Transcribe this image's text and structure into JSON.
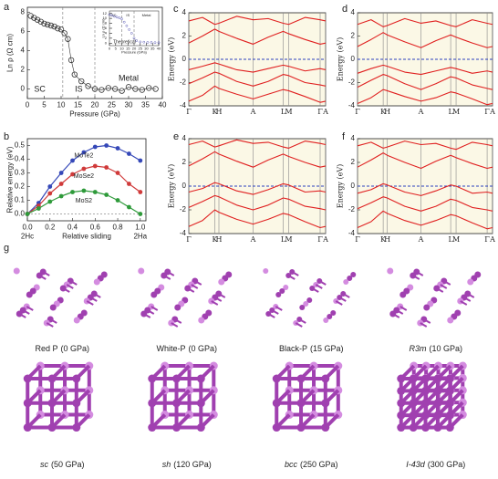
{
  "chart_data": [
    {
      "panel_label": "a",
      "type": "scatter",
      "x_label": "Pressure (GPa)",
      "y_label": "Ln ρ (Ω cm)",
      "xlim": [
        0,
        40
      ],
      "ylim": [
        -1,
        8.5
      ],
      "xticks": [
        0,
        5,
        10,
        15,
        20,
        25,
        30,
        35,
        40
      ],
      "yticks": [
        0,
        2,
        4,
        6,
        8
      ],
      "x": [
        1,
        2,
        3,
        4,
        5,
        6,
        7,
        8,
        9,
        10,
        11,
        12,
        13,
        14,
        16,
        18,
        20,
        22,
        24,
        26,
        28,
        30,
        32,
        34,
        36,
        38
      ],
      "values": [
        7.6,
        7.4,
        7.2,
        7.0,
        6.8,
        6.7,
        6.6,
        6.5,
        6.3,
        6.2,
        5.8,
        5.2,
        3.0,
        1.5,
        0.8,
        0.3,
        0.0,
        -0.1,
        0.1,
        0.0,
        -0.2,
        0.2,
        0.0,
        -0.1,
        0.1,
        0.0
      ],
      "color": "#333333",
      "region_labels": [
        "SC",
        "IS",
        "Metal"
      ],
      "boundaries": [
        10.5,
        20
      ],
      "inset": {
        "type": "scatter",
        "x_label": "Pressure (GPa)",
        "y_label": "Ln ρ (Ω cm)",
        "legend": "Theoretical",
        "color": "#5a5ab4",
        "region_labels": [
          "SC",
          "IS",
          "Metal"
        ],
        "boundaries": [
          10,
          20
        ],
        "xlim": [
          0,
          40
        ],
        "ylim": [
          -1,
          13
        ],
        "xticks": [
          0,
          5,
          10,
          15,
          20,
          25,
          30,
          35,
          40
        ],
        "yticks": [
          0,
          2,
          4,
          6,
          8,
          10,
          12
        ],
        "x": [
          0,
          2,
          4,
          6,
          8,
          10,
          12,
          14,
          16,
          18,
          20,
          22,
          25,
          28,
          31,
          34,
          37,
          40
        ],
        "values": [
          11.5,
          11.2,
          10.8,
          10.5,
          10.2,
          9.8,
          8.5,
          7,
          5.5,
          4,
          2,
          1,
          0.5,
          0.4,
          0.3,
          0.3,
          0.2,
          0.2
        ]
      }
    },
    {
      "panel_label": "b",
      "type": "line",
      "x_label": "Relative sliding",
      "y_label": "Relative energy (eV)",
      "x_end_labels": [
        "2Hc",
        "2Ha"
      ],
      "xlim": [
        0,
        1.05
      ],
      "ylim": [
        -0.05,
        0.55
      ],
      "xticks": [
        {
          "value": 0,
          "label": "0.0"
        },
        {
          "value": 0.2,
          "label": "0.2"
        },
        {
          "value": 0.4,
          "label": "0.4"
        },
        {
          "value": 0.6,
          "label": "0.6"
        },
        {
          "value": 0.8,
          "label": "0.8"
        },
        {
          "value": 1,
          "label": "1.0"
        }
      ],
      "yticks": [
        {
          "value": 0,
          "label": "0.0"
        },
        {
          "value": 0.1,
          "label": "0.1"
        },
        {
          "value": 0.2,
          "label": "0.2"
        },
        {
          "value": 0.3,
          "label": "0.3"
        },
        {
          "value": 0.4,
          "label": "0.4"
        },
        {
          "value": 0.5,
          "label": "0.5"
        }
      ],
      "reference_line": 0,
      "x": [
        0,
        0.1,
        0.2,
        0.3,
        0.4,
        0.5,
        0.6,
        0.7,
        0.8,
        0.9,
        1.0
      ],
      "series": [
        {
          "name": "MoTe2",
          "color": "#3548b8",
          "values": [
            0,
            0.08,
            0.2,
            0.3,
            0.39,
            0.45,
            0.49,
            0.5,
            0.48,
            0.44,
            0.39
          ]
        },
        {
          "name": "MoSe2",
          "color": "#d03a3a",
          "values": [
            0,
            0.06,
            0.15,
            0.22,
            0.29,
            0.33,
            0.35,
            0.34,
            0.3,
            0.22,
            0.16
          ]
        },
        {
          "name": "MoS2",
          "color": "#2e9a3a",
          "values": [
            0,
            0.04,
            0.09,
            0.13,
            0.16,
            0.17,
            0.16,
            0.14,
            0.1,
            0.05,
            0.0
          ]
        }
      ]
    },
    {
      "panel_label": "c",
      "type": "line",
      "y_label": "Energy (eV)",
      "background": "#fbf8e6",
      "fermi_level": 0,
      "xlim": [
        0,
        1
      ],
      "ylim": [
        -4,
        4
      ],
      "yticks": [
        -4,
        -2,
        0,
        2,
        4
      ],
      "xticks": [
        {
          "value": 0,
          "label": "Γ"
        },
        {
          "value": 0.19,
          "label": "K"
        },
        {
          "value": 0.22,
          "label": "H"
        },
        {
          "value": 0.47,
          "label": "A"
        },
        {
          "value": 0.69,
          "label": "L"
        },
        {
          "value": 0.73,
          "label": "M"
        },
        {
          "value": 0.96,
          "label": "Γ"
        },
        {
          "value": 1,
          "label": "A"
        }
      ],
      "x": [
        0,
        0.1,
        0.19,
        0.22,
        0.35,
        0.47,
        0.58,
        0.69,
        0.73,
        0.85,
        0.96,
        1
      ],
      "series": [
        {
          "color": "#e02020",
          "values": [
            -3.6,
            -3.1,
            -2.3,
            -2.5,
            -3.0,
            -3.4,
            -3.0,
            -2.6,
            -2.7,
            -3.2,
            -3.7,
            -3.6
          ]
        },
        {
          "color": "#e02020",
          "values": [
            -2.1,
            -1.6,
            -1.1,
            -1.2,
            -1.9,
            -2.3,
            -1.9,
            -1.3,
            -1.4,
            -2.0,
            -2.2,
            -2.3
          ]
        },
        {
          "color": "#e02020",
          "values": [
            -0.9,
            -0.6,
            -0.3,
            -0.4,
            -0.9,
            -1.1,
            -0.8,
            -0.5,
            -0.6,
            -1.0,
            -0.8,
            -0.9
          ]
        },
        {
          "color": "#e02020",
          "values": [
            1.4,
            2.0,
            2.6,
            2.4,
            1.8,
            1.3,
            1.9,
            2.4,
            2.2,
            1.7,
            1.3,
            1.4
          ]
        },
        {
          "color": "#e02020",
          "values": [
            3.3,
            3.6,
            3.0,
            3.1,
            3.7,
            3.4,
            3.5,
            3.1,
            3.0,
            3.6,
            3.4,
            3.3
          ]
        }
      ]
    },
    {
      "panel_label": "d",
      "type": "line",
      "y_label": "Energy (eV)",
      "background": "#fbf8e6",
      "fermi_level": 0,
      "xlim": [
        0,
        1
      ],
      "ylim": [
        -4,
        4
      ],
      "yticks": [
        -4,
        -2,
        0,
        2,
        4
      ],
      "xticks": [
        {
          "value": 0,
          "label": "Γ"
        },
        {
          "value": 0.19,
          "label": "K"
        },
        {
          "value": 0.22,
          "label": "H"
        },
        {
          "value": 0.47,
          "label": "A"
        },
        {
          "value": 0.69,
          "label": "L"
        },
        {
          "value": 0.73,
          "label": "M"
        },
        {
          "value": 0.96,
          "label": "Γ"
        },
        {
          "value": 1,
          "label": "A"
        }
      ],
      "x": [
        0,
        0.1,
        0.19,
        0.22,
        0.35,
        0.47,
        0.58,
        0.69,
        0.73,
        0.85,
        0.96,
        1
      ],
      "series": [
        {
          "color": "#e02020",
          "values": [
            -3.8,
            -3.3,
            -2.6,
            -2.7,
            -3.2,
            -3.6,
            -3.3,
            -2.8,
            -2.9,
            -3.4,
            -3.9,
            -3.8
          ]
        },
        {
          "color": "#e02020",
          "values": [
            -2.4,
            -1.8,
            -1.3,
            -1.4,
            -2.1,
            -2.6,
            -2.1,
            -1.5,
            -1.6,
            -2.2,
            -2.5,
            -2.6
          ]
        },
        {
          "color": "#e02020",
          "values": [
            -1.2,
            -0.8,
            -0.5,
            -0.6,
            -1.1,
            -1.3,
            -1.0,
            -0.7,
            -0.8,
            -1.2,
            -1.0,
            -1.1
          ]
        },
        {
          "color": "#e02020",
          "values": [
            1.1,
            1.7,
            2.3,
            2.1,
            1.5,
            1.0,
            1.6,
            2.1,
            1.9,
            1.4,
            1.0,
            1.1
          ]
        },
        {
          "color": "#e02020",
          "values": [
            3.0,
            3.4,
            2.8,
            2.9,
            3.5,
            3.1,
            3.3,
            2.9,
            2.8,
            3.4,
            3.1,
            3.0
          ]
        }
      ]
    },
    {
      "panel_label": "e",
      "type": "line",
      "y_label": "Energy (eV)",
      "background": "#fbf8e6",
      "fermi_level": 0,
      "xlim": [
        0,
        1
      ],
      "ylim": [
        -4,
        4
      ],
      "yticks": [
        -4,
        -2,
        0,
        2,
        4
      ],
      "xticks": [
        {
          "value": 0,
          "label": "Γ"
        },
        {
          "value": 0.19,
          "label": "K"
        },
        {
          "value": 0.22,
          "label": "H"
        },
        {
          "value": 0.47,
          "label": "A"
        },
        {
          "value": 0.69,
          "label": "L"
        },
        {
          "value": 0.73,
          "label": "M"
        },
        {
          "value": 0.96,
          "label": "Γ"
        },
        {
          "value": 1,
          "label": "A"
        }
      ],
      "x": [
        0,
        0.1,
        0.19,
        0.22,
        0.35,
        0.47,
        0.58,
        0.69,
        0.73,
        0.85,
        0.96,
        1
      ],
      "series": [
        {
          "color": "#e02020",
          "values": [
            -3.4,
            -2.9,
            -2.0,
            -2.2,
            -2.8,
            -3.2,
            -2.8,
            -2.3,
            -2.4,
            -3.0,
            -3.5,
            -3.4
          ]
        },
        {
          "color": "#e02020",
          "values": [
            -1.8,
            -1.3,
            -0.8,
            -0.9,
            -1.6,
            -2.0,
            -1.6,
            -1.0,
            -1.1,
            -1.7,
            -1.9,
            -2.0
          ]
        },
        {
          "color": "#e02020",
          "values": [
            -0.5,
            -0.2,
            0.3,
            0.2,
            -0.4,
            -0.7,
            -0.3,
            0.2,
            0.1,
            -0.5,
            -0.4,
            -0.5
          ]
        },
        {
          "color": "#e02020",
          "values": [
            1.7,
            2.3,
            2.9,
            2.7,
            2.1,
            1.6,
            2.2,
            2.7,
            2.5,
            2.0,
            1.6,
            1.7
          ]
        },
        {
          "color": "#e02020",
          "values": [
            3.5,
            3.8,
            3.3,
            3.4,
            3.9,
            3.6,
            3.7,
            3.3,
            3.2,
            3.8,
            3.6,
            3.5
          ]
        }
      ]
    },
    {
      "panel_label": "f",
      "type": "line",
      "y_label": "Energy (eV)",
      "background": "#fbf8e6",
      "fermi_level": 0,
      "xlim": [
        0,
        1
      ],
      "ylim": [
        -4,
        4
      ],
      "yticks": [
        -4,
        -2,
        0,
        2,
        4
      ],
      "xticks": [
        {
          "value": 0,
          "label": "Γ"
        },
        {
          "value": 0.19,
          "label": "K"
        },
        {
          "value": 0.22,
          "label": "H"
        },
        {
          "value": 0.47,
          "label": "A"
        },
        {
          "value": 0.69,
          "label": "L"
        },
        {
          "value": 0.73,
          "label": "M"
        },
        {
          "value": 0.96,
          "label": "Γ"
        },
        {
          "value": 1,
          "label": "A"
        }
      ],
      "x": [
        0,
        0.1,
        0.19,
        0.22,
        0.35,
        0.47,
        0.58,
        0.69,
        0.73,
        0.85,
        0.96,
        1
      ],
      "series": [
        {
          "color": "#e02020",
          "values": [
            -3.5,
            -3.0,
            -2.1,
            -2.3,
            -2.9,
            -3.3,
            -2.9,
            -2.4,
            -2.5,
            -3.1,
            -3.6,
            -3.5
          ]
        },
        {
          "color": "#e02020",
          "values": [
            -1.9,
            -1.4,
            -0.9,
            -1.0,
            -1.7,
            -2.1,
            -1.7,
            -1.1,
            -1.2,
            -1.8,
            -2.0,
            -2.1
          ]
        },
        {
          "color": "#e02020",
          "values": [
            -0.6,
            -0.3,
            0.2,
            0.1,
            -0.5,
            -0.8,
            -0.4,
            0.1,
            0.0,
            -0.6,
            -0.5,
            -0.6
          ]
        },
        {
          "color": "#e02020",
          "values": [
            1.6,
            2.2,
            2.8,
            2.6,
            2.0,
            1.5,
            2.1,
            2.6,
            2.4,
            1.9,
            1.5,
            1.6
          ]
        },
        {
          "color": "#e02020",
          "values": [
            3.4,
            3.7,
            3.2,
            3.3,
            3.8,
            3.5,
            3.6,
            3.2,
            3.1,
            3.7,
            3.5,
            3.4
          ]
        }
      ]
    }
  ],
  "structures": {
    "panel_label": "g",
    "items": [
      {
        "name": "Red P",
        "pressure": "(0 GPa)",
        "italic": false
      },
      {
        "name": "White-P",
        "pressure": "(0 GPa)",
        "italic": false
      },
      {
        "name": "Black-P",
        "pressure": "(15 GPa)",
        "italic": false
      },
      {
        "name": "R3m",
        "pressure": "(10 GPa)",
        "italic": true
      },
      {
        "name": "sc",
        "pressure": "(50 GPa)",
        "italic": true
      },
      {
        "name": "sh",
        "pressure": "(120 GPa)",
        "italic": true
      },
      {
        "name": "bcc",
        "pressure": "(250 GPa)",
        "italic": true
      },
      {
        "name": "I-43d",
        "pressure": "(300 GPa)",
        "italic": true
      }
    ]
  }
}
